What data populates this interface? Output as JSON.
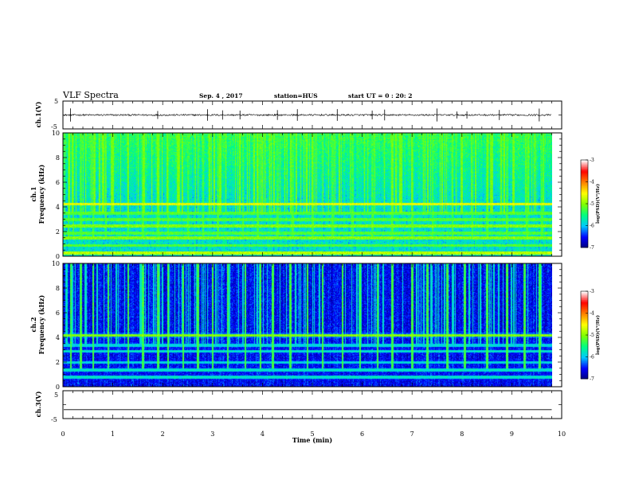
{
  "header": {
    "title": "VLF Spectra",
    "date": "Sep. 4 , 2017",
    "station": "station=HUS",
    "start_time": "start UT =  0 : 20: 2"
  },
  "colors": {
    "spectrogram_colormap": [
      "#00007a",
      "#0000ff",
      "#00c8ff",
      "#00ff80",
      "#80ff00",
      "#ffff00",
      "#ff8000",
      "#ff0000",
      "#ffffff"
    ],
    "waveform_line": "#000000",
    "axis": "#000000"
  },
  "chart_data": [
    {
      "type": "line",
      "panel": "ch.1 waveform",
      "ylabel": "ch.1(V)",
      "xlim": [
        0,
        10
      ],
      "ylim": [
        -5,
        5
      ],
      "ytick_labels": [
        "5",
        "-5"
      ],
      "yticks": [
        5,
        -5
      ],
      "data_end_min": 9.8,
      "baseline_v": 0.0,
      "noise_amplitude_v": 0.3,
      "spike_times_min": [
        0.15,
        1.9,
        2.9,
        3.2,
        3.55,
        4.3,
        4.7,
        5.5,
        6.2,
        6.45,
        7.5,
        7.9,
        8.1,
        8.75,
        9.55
      ]
    },
    {
      "type": "heatmap",
      "panel": "ch.1 spectrogram",
      "ylabel_1": "ch.1",
      "ylabel_2": "Frequency (kHz)",
      "xlim": [
        0,
        10
      ],
      "ylim": [
        0,
        10
      ],
      "yticks": [
        0,
        2,
        4,
        6,
        8,
        10
      ],
      "ytick_labels": [
        "0",
        "2",
        "4",
        "6",
        "8",
        "10"
      ],
      "data_end_min": 9.8,
      "background_level": 0.3,
      "bands_khz": [
        [
          0.3,
          0.55
        ],
        [
          0.9,
          0.45
        ],
        [
          1.5,
          0.5
        ],
        [
          1.9,
          0.45
        ],
        [
          2.5,
          0.5
        ],
        [
          3.0,
          0.45
        ],
        [
          3.5,
          0.45
        ],
        [
          4.25,
          0.6
        ]
      ],
      "sferic_times_min": [
        0.1,
        0.2,
        0.35,
        0.6,
        0.85,
        1.3,
        1.6,
        1.9,
        2.1,
        2.5,
        2.8,
        3.1,
        3.6,
        3.9,
        4.3,
        4.6,
        5.0,
        5.4,
        5.8,
        6.2,
        6.6,
        7.0,
        7.4,
        7.8,
        8.2,
        8.5,
        8.9,
        9.3,
        9.6
      ],
      "colorbar": {
        "label": "log(PSD)(V²/Hz)",
        "range": [
          -7,
          -3
        ],
        "ticks": [
          "-3",
          "-4",
          "-5",
          "-6",
          "-7"
        ]
      }
    },
    {
      "type": "heatmap",
      "panel": "ch.2 spectrogram",
      "ylabel_1": "ch.2",
      "ylabel_2": "Frequency (kHz)",
      "xlim": [
        0,
        10
      ],
      "ylim": [
        0,
        10
      ],
      "yticks": [
        0,
        2,
        4,
        6,
        8,
        10
      ],
      "ytick_labels": [
        "0",
        "2",
        "4",
        "6",
        "8",
        "10"
      ],
      "data_end_min": 9.8,
      "background_level": 0.12,
      "bands_khz": [
        [
          0.8,
          0.3
        ],
        [
          1.4,
          0.3
        ],
        [
          2.0,
          0.28
        ],
        [
          2.9,
          0.3
        ],
        [
          3.4,
          0.28
        ],
        [
          4.2,
          0.5
        ]
      ],
      "sferic_times_min": [
        0.15,
        0.35,
        0.6,
        0.9,
        1.3,
        1.6,
        1.9,
        2.1,
        2.4,
        2.7,
        3.0,
        3.3,
        3.65,
        3.95,
        4.2,
        4.55,
        4.9,
        5.2,
        5.6,
        5.95,
        6.3,
        6.6,
        7.0,
        7.3,
        7.7,
        8.05,
        8.5,
        8.9,
        9.25,
        9.55
      ],
      "colorbar": {
        "label": "log(PSD)(V²/Hz)",
        "range": [
          -7,
          -3
        ],
        "ticks": [
          "-3",
          "-4",
          "-5",
          "-6",
          "-7"
        ]
      }
    },
    {
      "type": "line",
      "panel": "ch.3 waveform",
      "ylabel": "ch.3(V)",
      "xlabel": "Time (min)",
      "xlim": [
        0,
        10
      ],
      "ylim": [
        -5,
        5
      ],
      "yticks": [
        5,
        -5
      ],
      "ytick_labels": [
        "5",
        "-5"
      ],
      "xticks": [
        0,
        1,
        2,
        3,
        4,
        5,
        6,
        7,
        8,
        9,
        10
      ],
      "xtick_labels": [
        "0",
        "1",
        "2",
        "3",
        "4",
        "5",
        "6",
        "7",
        "8",
        "9",
        "10"
      ],
      "data_end_min": 9.8,
      "constant_value_v": -1.8
    }
  ]
}
